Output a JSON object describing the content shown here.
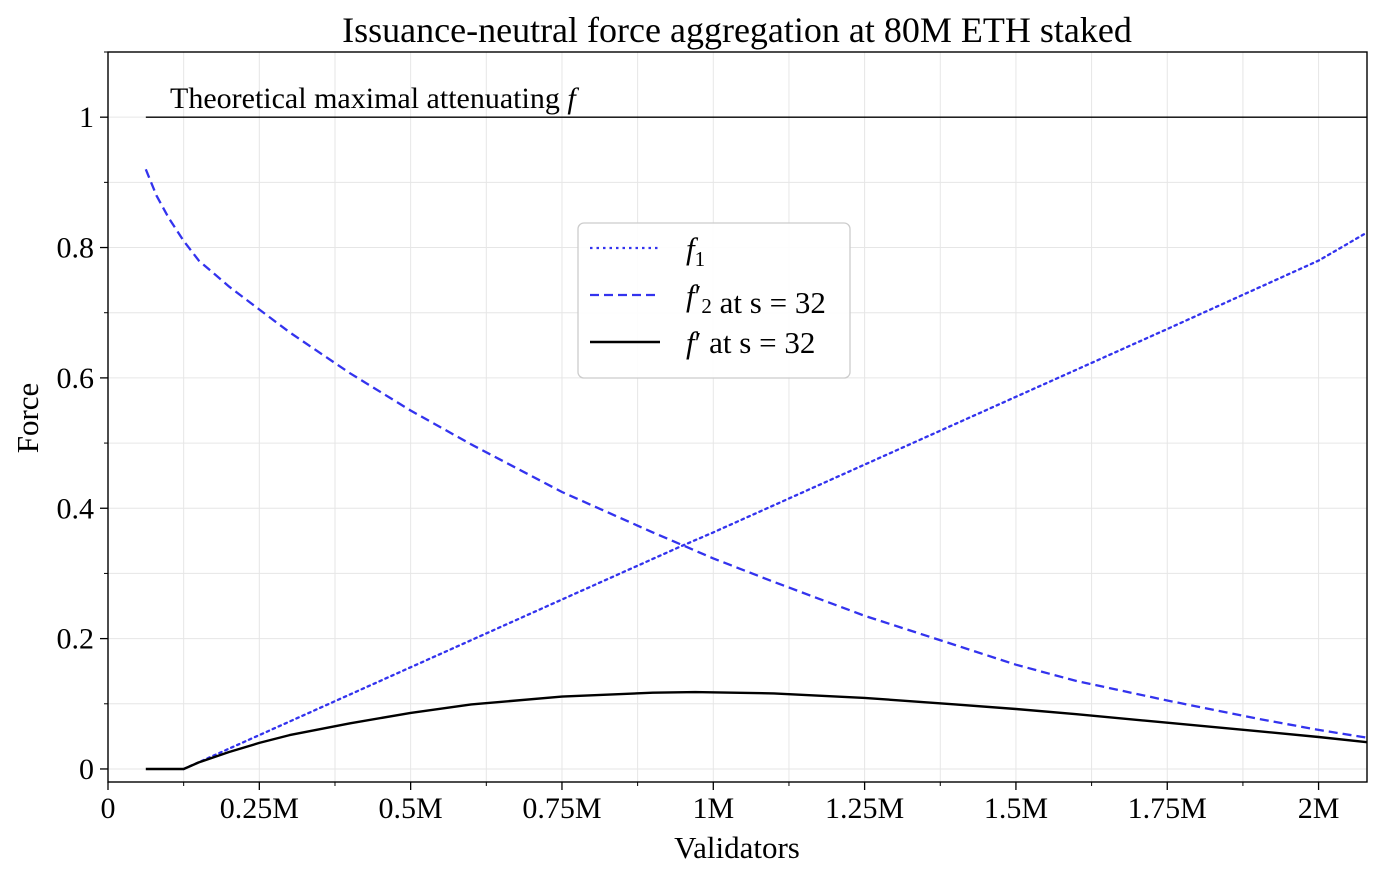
{
  "chart_data": {
    "type": "line",
    "title": "Issuance-neutral force aggregation at 80M ETH staked",
    "xlabel": "Validators",
    "ylabel": "Force",
    "xlim": [
      0,
      2.08
    ],
    "ylim": [
      -0.02,
      1.1
    ],
    "x_unit": "M",
    "x_ticks": [
      0,
      0.25,
      0.5,
      0.75,
      1,
      1.25,
      1.5,
      1.75,
      2
    ],
    "x_tick_labels": [
      "0",
      "0.25M",
      "0.5M",
      "0.75M",
      "1M",
      "1.25M",
      "1.5M",
      "1.75M",
      "2M"
    ],
    "x_minor_ticks": [
      0.125,
      0.375,
      0.625,
      0.875,
      1.125,
      1.375,
      1.625,
      1.875
    ],
    "y_ticks": [
      0,
      0.2,
      0.4,
      0.6,
      0.8,
      1
    ],
    "y_tick_labels": [
      "0",
      "0.2",
      "0.4",
      "0.6",
      "0.8",
      "1"
    ],
    "y_minor_ticks": [
      0.1,
      0.3,
      0.5,
      0.7,
      0.9,
      1.1
    ],
    "grid": true,
    "legend_position": "upper-center",
    "annotation": {
      "text": "Theoretical maximal attenuating ",
      "italic_part": "f",
      "y": 1,
      "x_start": 0.0625,
      "x_end": 2.08
    },
    "series": [
      {
        "key": "f1",
        "name_main": "f",
        "name_sub": "1",
        "name_prime": "",
        "name_suffix": "",
        "style": "dotted",
        "color": "#3333ee",
        "x": [
          0.125,
          0.25,
          0.5,
          0.75,
          0.95,
          1.0,
          1.25,
          1.5,
          1.75,
          2.0,
          2.08
        ],
        "y": [
          0.0,
          0.052,
          0.156,
          0.26,
          0.343,
          0.363,
          0.467,
          0.571,
          0.675,
          0.78,
          0.823
        ]
      },
      {
        "key": "f2",
        "name_main": "f",
        "name_sub": "2",
        "name_prime": "′",
        "name_suffix": " at s = 32",
        "style": "dashed",
        "color": "#3333ee",
        "x": [
          0.0625,
          0.08,
          0.1,
          0.125,
          0.15,
          0.2,
          0.25,
          0.3,
          0.4,
          0.5,
          0.6,
          0.75,
          0.9,
          1.0,
          1.1,
          1.25,
          1.4,
          1.5,
          1.6,
          1.75,
          1.9,
          2.0,
          2.08
        ],
        "y": [
          0.92,
          0.88,
          0.846,
          0.81,
          0.78,
          0.74,
          0.705,
          0.67,
          0.607,
          0.55,
          0.498,
          0.425,
          0.363,
          0.323,
          0.287,
          0.235,
          0.19,
          0.16,
          0.135,
          0.105,
          0.077,
          0.06,
          0.048
        ]
      },
      {
        "key": "fprime",
        "name_main": "f",
        "name_sub": "",
        "name_prime": "′",
        "name_suffix": " at s = 32",
        "style": "solid",
        "color": "#000000",
        "x": [
          0.0625,
          0.125,
          0.15,
          0.2,
          0.25,
          0.3,
          0.4,
          0.5,
          0.6,
          0.75,
          0.9,
          0.97,
          1.1,
          1.25,
          1.4,
          1.5,
          1.6,
          1.75,
          1.9,
          2.0,
          2.08
        ],
        "y": [
          0.0,
          0.0,
          0.01,
          0.026,
          0.04,
          0.052,
          0.07,
          0.086,
          0.099,
          0.111,
          0.117,
          0.118,
          0.116,
          0.109,
          0.099,
          0.092,
          0.084,
          0.071,
          0.058,
          0.049,
          0.041
        ]
      }
    ]
  }
}
